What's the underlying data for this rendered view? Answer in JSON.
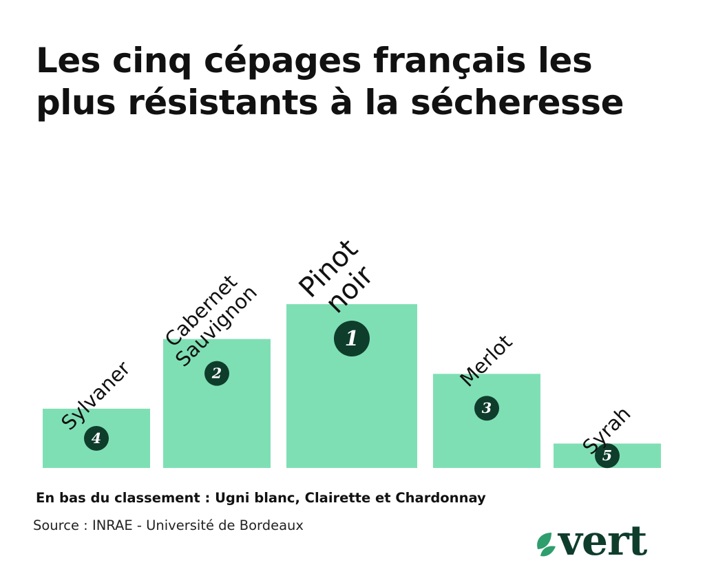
{
  "title_lines": [
    "Les cinq cépages français les",
    "plus résistants à la sécheresse"
  ],
  "footnote": "En bas du classement : Ugni blanc, Clairette et Chardonnay",
  "source": "Source : INRAE - Université de Bordeaux",
  "brand": "vert",
  "colors": {
    "bar": "#7fdfb4",
    "badge": "#0f3d2c",
    "text": "#111111",
    "logo": "#0f3d2c",
    "leaf": "#2e9e6d"
  },
  "chart_data": {
    "type": "bar",
    "categories": [
      "Sylvaner",
      "Cabernet Sauvignon",
      "Pinot noir",
      "Merlot",
      "Syrah"
    ],
    "ranks": [
      "4",
      "2",
      "1",
      "3",
      "5"
    ],
    "values": [
      2,
      4,
      5,
      3,
      1
    ],
    "ylim": [
      0,
      5
    ],
    "grid": false,
    "legend": "none"
  }
}
